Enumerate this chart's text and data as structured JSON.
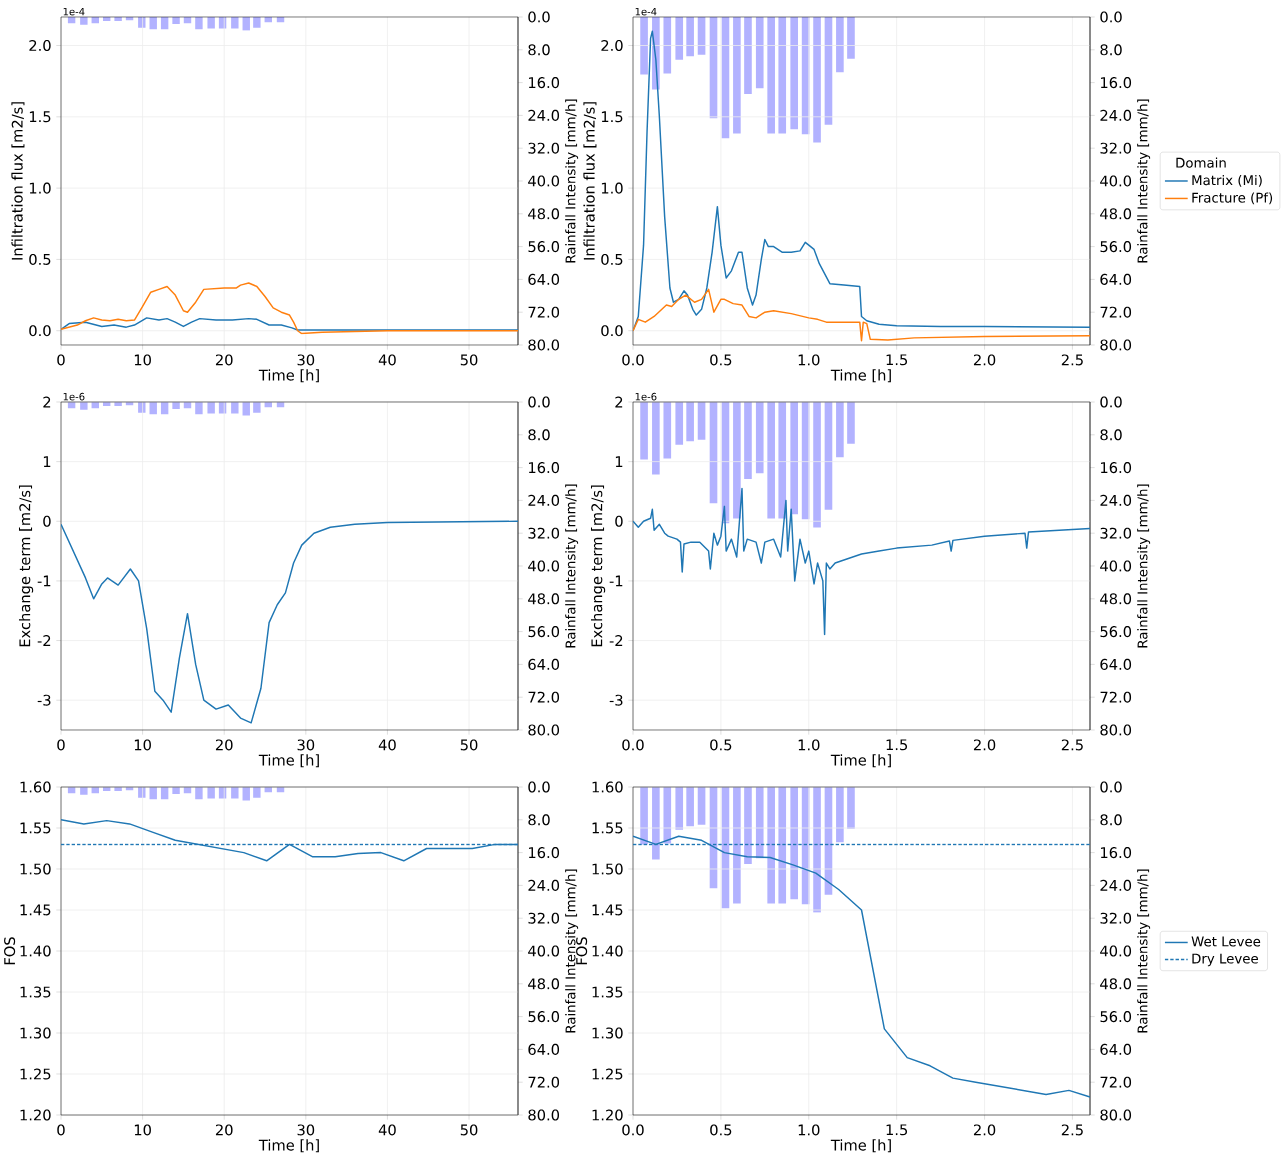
{
  "chart_data": [
    {
      "type": "line",
      "xlabel": "Time [h]",
      "ylabel": "Infiltration flux [m2/s]",
      "y2label": "Rainfall Intensity [mm/h]",
      "annotations": [
        "1e-4"
      ],
      "grid": true,
      "xlim": [
        0,
        56
      ],
      "xticks": [
        0,
        10,
        20,
        30,
        40,
        50
      ],
      "ylim": [
        -0.1,
        2.2
      ],
      "yticks": [
        {
          "value": 0,
          "label": "0.0"
        },
        {
          "value": 0.5,
          "label": "0.5"
        },
        {
          "value": 1,
          "label": "1.0"
        },
        {
          "value": 1.5,
          "label": "1.5"
        },
        {
          "value": 2,
          "label": "2.0"
        }
      ],
      "y2lim": [
        80,
        0
      ],
      "y2ticks": [
        {
          "value": 0,
          "label": "0.0"
        },
        {
          "value": 8,
          "label": "8.0"
        },
        {
          "value": 16,
          "label": "16.0"
        },
        {
          "value": 24,
          "label": "24.0"
        },
        {
          "value": 32,
          "label": "32.0"
        },
        {
          "value": 40,
          "label": "40.0"
        },
        {
          "value": 48,
          "label": "48.0"
        },
        {
          "value": 56,
          "label": "56.0"
        },
        {
          "value": 64,
          "label": "64.0"
        },
        {
          "value": 72,
          "label": "72.0"
        },
        {
          "value": 80,
          "label": "80.0"
        }
      ],
      "series": [
        {
          "type": "bar",
          "axis": "y2",
          "color": "#b2b2ff",
          "x": [
            1.3,
            2.8,
            4.2,
            5.6,
            7.0,
            8.4,
            9.9,
            11.3,
            12.7,
            14.1,
            15.5,
            16.9,
            18.4,
            19.8,
            21.3,
            22.7,
            24.0,
            25.4,
            26.9
          ],
          "values": [
            1.5,
            1.9,
            1.5,
            1.0,
            1.0,
            0.8,
            2.6,
            3.0,
            3.0,
            1.7,
            1.5,
            3.0,
            2.8,
            2.8,
            2.8,
            3.3,
            2.6,
            1.3,
            1.3
          ]
        },
        {
          "color": "#1f77b4",
          "x": [
            0,
            1,
            3,
            5,
            6.5,
            8,
            9,
            10.5,
            12,
            13,
            14,
            15,
            16,
            17,
            19,
            21,
            23,
            24,
            25.5,
            27,
            28.3,
            29,
            40,
            56
          ],
          "values": [
            0.01,
            0.05,
            0.06,
            0.03,
            0.04,
            0.025,
            0.04,
            0.09,
            0.075,
            0.085,
            0.06,
            0.03,
            0.06,
            0.085,
            0.075,
            0.075,
            0.085,
            0.08,
            0.04,
            0.04,
            0.02,
            0.005,
            0.005,
            0.005
          ]
        },
        {
          "color": "#ff7f0e",
          "x": [
            0,
            2,
            3,
            4,
            5,
            6,
            7,
            8,
            9,
            10,
            11,
            12,
            13,
            14,
            15,
            15.5,
            16.5,
            17.5,
            20,
            21.5,
            22,
            23,
            24,
            25,
            26,
            27,
            28,
            28.5,
            29,
            29.5,
            32,
            40,
            56
          ],
          "values": [
            0.01,
            0.04,
            0.07,
            0.09,
            0.075,
            0.07,
            0.08,
            0.07,
            0.075,
            0.17,
            0.27,
            0.29,
            0.31,
            0.25,
            0.14,
            0.13,
            0.2,
            0.29,
            0.3,
            0.3,
            0.32,
            0.335,
            0.31,
            0.24,
            0.16,
            0.13,
            0.11,
            0.06,
            0.0,
            -0.02,
            -0.01,
            0.0,
            0.0
          ]
        }
      ]
    },
    {
      "type": "line",
      "xlabel": "Time [h]",
      "ylabel": "Infiltration flux [m2/s]",
      "y2label": "Rainfall Intensity [mm/h]",
      "annotations": [
        "1e-4"
      ],
      "grid": true,
      "legend": "right",
      "legend_title": "Domain",
      "xlim": [
        0,
        2.6
      ],
      "xticks": [
        {
          "value": 0,
          "label": "0.0"
        },
        {
          "value": 0.5,
          "label": "0.5"
        },
        {
          "value": 1,
          "label": "1.0"
        },
        {
          "value": 1.5,
          "label": "1.5"
        },
        {
          "value": 2,
          "label": "2.0"
        },
        {
          "value": 2.5,
          "label": "2.5"
        }
      ],
      "ylim": [
        -0.1,
        2.2
      ],
      "yticks": [
        {
          "value": 0,
          "label": "0.0"
        },
        {
          "value": 0.5,
          "label": "0.5"
        },
        {
          "value": 1,
          "label": "1.0"
        },
        {
          "value": 1.5,
          "label": "1.5"
        },
        {
          "value": 2,
          "label": "2.0"
        }
      ],
      "y2lim": [
        80,
        0
      ],
      "y2ticks": [
        {
          "value": 0,
          "label": "0.0"
        },
        {
          "value": 8,
          "label": "8.0"
        },
        {
          "value": 16,
          "label": "16.0"
        },
        {
          "value": 24,
          "label": "24.0"
        },
        {
          "value": 32,
          "label": "32.0"
        },
        {
          "value": 40,
          "label": "40.0"
        },
        {
          "value": 48,
          "label": "48.0"
        },
        {
          "value": 56,
          "label": "56.0"
        },
        {
          "value": 64,
          "label": "64.0"
        },
        {
          "value": 72,
          "label": "72.0"
        },
        {
          "value": 80,
          "label": "80.0"
        }
      ],
      "series": [
        {
          "type": "bar",
          "axis": "y2",
          "color": "#b2b2ff",
          "x": [
            0.063,
            0.13,
            0.195,
            0.263,
            0.325,
            0.39,
            0.458,
            0.526,
            0.591,
            0.654,
            0.721,
            0.786,
            0.849,
            0.917,
            0.982,
            1.047,
            1.112,
            1.177,
            1.24
          ],
          "values": [
            14.0,
            17.7,
            13.8,
            10.4,
            9.6,
            9.2,
            24.7,
            29.6,
            28.4,
            18.8,
            17.4,
            28.4,
            28.4,
            27.4,
            28.6,
            30.6,
            26.3,
            13.5,
            10.2
          ]
        },
        {
          "name": "Matrix (Mi)",
          "color": "#1f77b4",
          "x": [
            0,
            0.03,
            0.06,
            0.08,
            0.1,
            0.11,
            0.13,
            0.15,
            0.18,
            0.21,
            0.23,
            0.26,
            0.29,
            0.31,
            0.34,
            0.36,
            0.39,
            0.42,
            0.45,
            0.48,
            0.5,
            0.53,
            0.56,
            0.6,
            0.62,
            0.65,
            0.68,
            0.7,
            0.73,
            0.75,
            0.77,
            0.8,
            0.85,
            0.9,
            0.95,
            0.98,
            1.0,
            1.03,
            1.06,
            1.09,
            1.12,
            1.2,
            1.29,
            1.3,
            1.33,
            1.4,
            1.5,
            1.75,
            2.0,
            2.6
          ],
          "values": [
            0,
            0.1,
            0.6,
            1.4,
            2.05,
            2.1,
            1.9,
            1.5,
            0.8,
            0.3,
            0.2,
            0.22,
            0.28,
            0.25,
            0.15,
            0.11,
            0.15,
            0.3,
            0.55,
            0.87,
            0.6,
            0.37,
            0.42,
            0.55,
            0.55,
            0.3,
            0.18,
            0.25,
            0.5,
            0.64,
            0.59,
            0.59,
            0.55,
            0.55,
            0.56,
            0.62,
            0.6,
            0.57,
            0.47,
            0.4,
            0.33,
            0.32,
            0.31,
            0.1,
            0.07,
            0.045,
            0.035,
            0.03,
            0.03,
            0.025
          ]
        },
        {
          "name": "Fracture (Pf)",
          "color": "#ff7f0e",
          "x": [
            0,
            0.03,
            0.07,
            0.12,
            0.19,
            0.22,
            0.26,
            0.3,
            0.35,
            0.39,
            0.43,
            0.46,
            0.5,
            0.52,
            0.57,
            0.62,
            0.66,
            0.7,
            0.75,
            0.8,
            0.9,
            1.0,
            1.05,
            1.1,
            1.2,
            1.29,
            1.3,
            1.31,
            1.33,
            1.35,
            1.45,
            1.6,
            2.0,
            2.6
          ],
          "values": [
            0.0,
            0.08,
            0.06,
            0.1,
            0.18,
            0.17,
            0.22,
            0.25,
            0.2,
            0.22,
            0.29,
            0.13,
            0.22,
            0.22,
            0.19,
            0.18,
            0.1,
            0.09,
            0.13,
            0.14,
            0.12,
            0.09,
            0.08,
            0.06,
            0.06,
            0.06,
            -0.07,
            0.06,
            0.05,
            -0.06,
            -0.065,
            -0.05,
            -0.04,
            -0.035
          ]
        }
      ]
    },
    {
      "type": "line",
      "xlabel": "Time [h]",
      "ylabel": "Exchange term [m2/s]",
      "y2label": "Rainfall Intensity [mm/h]",
      "annotations": [
        "1e-6"
      ],
      "grid": true,
      "xlim": [
        0,
        56
      ],
      "xticks": [
        0,
        10,
        20,
        30,
        40,
        50
      ],
      "ylim": [
        -3.5,
        2
      ],
      "yticks": [
        -3,
        -2,
        -1,
        0,
        1,
        2
      ],
      "y2lim": [
        80,
        0
      ],
      "y2ticks": [
        {
          "value": 0,
          "label": "0.0"
        },
        {
          "value": 8,
          "label": "8.0"
        },
        {
          "value": 16,
          "label": "16.0"
        },
        {
          "value": 24,
          "label": "24.0"
        },
        {
          "value": 32,
          "label": "32.0"
        },
        {
          "value": 40,
          "label": "40.0"
        },
        {
          "value": 48,
          "label": "48.0"
        },
        {
          "value": 56,
          "label": "56.0"
        },
        {
          "value": 64,
          "label": "64.0"
        },
        {
          "value": 72,
          "label": "72.0"
        },
        {
          "value": 80,
          "label": "80.0"
        }
      ],
      "series": [
        {
          "type": "bar",
          "axis": "y2",
          "color": "#b2b2ff",
          "x": [
            1.3,
            2.8,
            4.2,
            5.6,
            7.0,
            8.4,
            9.9,
            11.3,
            12.7,
            14.1,
            15.5,
            16.9,
            18.4,
            19.8,
            21.3,
            22.7,
            24.0,
            25.4,
            26.9
          ],
          "values": [
            1.5,
            1.9,
            1.5,
            1.0,
            1.0,
            0.8,
            2.6,
            3.0,
            3.0,
            1.7,
            1.5,
            3.0,
            2.8,
            2.8,
            2.8,
            3.3,
            2.6,
            1.3,
            1.3
          ]
        },
        {
          "color": "#1f77b4",
          "x": [
            0,
            1,
            2,
            3,
            4,
            5,
            5.7,
            7,
            8.5,
            9.5,
            10.5,
            11.5,
            12.5,
            13.5,
            14.5,
            15.5,
            16.5,
            17.5,
            19,
            20.5,
            22,
            23.3,
            24.5,
            25.5,
            26.5,
            27.5,
            28.5,
            29.5,
            31,
            33,
            36,
            40,
            56
          ],
          "values": [
            -0.05,
            -0.35,
            -0.65,
            -0.95,
            -1.3,
            -1.05,
            -0.95,
            -1.07,
            -0.8,
            -1.0,
            -1.8,
            -2.85,
            -3.0,
            -3.2,
            -2.3,
            -1.55,
            -2.4,
            -3.0,
            -3.15,
            -3.08,
            -3.3,
            -3.38,
            -2.8,
            -1.7,
            -1.4,
            -1.2,
            -0.7,
            -0.4,
            -0.2,
            -0.1,
            -0.05,
            -0.02,
            0.0
          ]
        }
      ]
    },
    {
      "type": "line",
      "xlabel": "Time [h]",
      "ylabel": "Exchange term [m2/s]",
      "y2label": "Rainfall Intensity [mm/h]",
      "annotations": [
        "1e-6"
      ],
      "grid": true,
      "xlim": [
        0,
        2.6
      ],
      "xticks": [
        {
          "value": 0,
          "label": "0.0"
        },
        {
          "value": 0.5,
          "label": "0.5"
        },
        {
          "value": 1,
          "label": "1.0"
        },
        {
          "value": 1.5,
          "label": "1.5"
        },
        {
          "value": 2,
          "label": "2.0"
        },
        {
          "value": 2.5,
          "label": "2.5"
        }
      ],
      "ylim": [
        -3.5,
        2
      ],
      "yticks": [
        -3,
        -2,
        -1,
        0,
        1,
        2
      ],
      "y2lim": [
        80,
        0
      ],
      "y2ticks": [
        {
          "value": 0,
          "label": "0.0"
        },
        {
          "value": 8,
          "label": "8.0"
        },
        {
          "value": 16,
          "label": "16.0"
        },
        {
          "value": 24,
          "label": "24.0"
        },
        {
          "value": 32,
          "label": "32.0"
        },
        {
          "value": 40,
          "label": "40.0"
        },
        {
          "value": 48,
          "label": "48.0"
        },
        {
          "value": 56,
          "label": "56.0"
        },
        {
          "value": 64,
          "label": "64.0"
        },
        {
          "value": 72,
          "label": "72.0"
        },
        {
          "value": 80,
          "label": "80.0"
        }
      ],
      "series": [
        {
          "type": "bar",
          "axis": "y2",
          "color": "#b2b2ff",
          "x": [
            0.063,
            0.13,
            0.195,
            0.263,
            0.325,
            0.39,
            0.458,
            0.526,
            0.591,
            0.654,
            0.721,
            0.786,
            0.849,
            0.917,
            0.982,
            1.047,
            1.112,
            1.177,
            1.24
          ],
          "values": [
            14.0,
            17.7,
            13.8,
            10.4,
            9.6,
            9.2,
            24.7,
            29.6,
            28.4,
            18.8,
            17.4,
            28.4,
            28.4,
            27.4,
            28.6,
            30.6,
            26.3,
            13.5,
            10.2
          ]
        },
        {
          "color": "#1f77b4",
          "x": [
            0,
            0.03,
            0.06,
            0.1,
            0.11,
            0.12,
            0.15,
            0.18,
            0.2,
            0.25,
            0.27,
            0.28,
            0.29,
            0.33,
            0.38,
            0.43,
            0.44,
            0.46,
            0.48,
            0.5,
            0.52,
            0.53,
            0.56,
            0.59,
            0.62,
            0.63,
            0.65,
            0.7,
            0.73,
            0.75,
            0.8,
            0.84,
            0.87,
            0.88,
            0.9,
            0.92,
            0.95,
            0.98,
            1.0,
            1.03,
            1.05,
            1.08,
            1.09,
            1.1,
            1.12,
            1.15,
            1.2,
            1.25,
            1.3,
            1.4,
            1.5,
            1.7,
            1.8,
            1.81,
            1.82,
            2.0,
            2.23,
            2.24,
            2.25,
            2.6
          ],
          "values": [
            0.0,
            -0.1,
            0.0,
            0.05,
            0.2,
            -0.15,
            -0.05,
            -0.2,
            -0.25,
            -0.3,
            -0.35,
            -0.85,
            -0.38,
            -0.35,
            -0.35,
            -0.5,
            -0.8,
            -0.2,
            -0.4,
            -0.25,
            0.25,
            -0.5,
            -0.3,
            -0.6,
            0.55,
            -0.5,
            -0.3,
            -0.35,
            -0.7,
            -0.35,
            -0.3,
            -0.6,
            0.35,
            -0.5,
            0.2,
            -1.0,
            -0.3,
            -0.7,
            -0.5,
            -1.05,
            -0.7,
            -1.0,
            -1.9,
            -0.7,
            -0.8,
            -0.7,
            -0.65,
            -0.6,
            -0.55,
            -0.5,
            -0.45,
            -0.4,
            -0.33,
            -0.5,
            -0.32,
            -0.25,
            -0.2,
            -0.45,
            -0.18,
            -0.12
          ]
        }
      ]
    },
    {
      "type": "line",
      "xlabel": "Time [h]",
      "ylabel": "FOS",
      "y2label": "Rainfall Intensity [mm/h]",
      "grid": true,
      "xlim": [
        0,
        56
      ],
      "xticks": [
        0,
        10,
        20,
        30,
        40,
        50
      ],
      "ylim": [
        1.2,
        1.6
      ],
      "yticks": [
        {
          "value": 1.2,
          "label": "1.20"
        },
        {
          "value": 1.25,
          "label": "1.25"
        },
        {
          "value": 1.3,
          "label": "1.30"
        },
        {
          "value": 1.35,
          "label": "1.35"
        },
        {
          "value": 1.4,
          "label": "1.40"
        },
        {
          "value": 1.45,
          "label": "1.45"
        },
        {
          "value": 1.5,
          "label": "1.50"
        },
        {
          "value": 1.55,
          "label": "1.55"
        },
        {
          "value": 1.6,
          "label": "1.60"
        }
      ],
      "y2lim": [
        80,
        0
      ],
      "y2ticks": [
        {
          "value": 0,
          "label": "0.0"
        },
        {
          "value": 8,
          "label": "8.0"
        },
        {
          "value": 16,
          "label": "16.0"
        },
        {
          "value": 24,
          "label": "24.0"
        },
        {
          "value": 32,
          "label": "32.0"
        },
        {
          "value": 40,
          "label": "40.0"
        },
        {
          "value": 48,
          "label": "48.0"
        },
        {
          "value": 56,
          "label": "56.0"
        },
        {
          "value": 64,
          "label": "64.0"
        },
        {
          "value": 72,
          "label": "72.0"
        },
        {
          "value": 80,
          "label": "80.0"
        }
      ],
      "series": [
        {
          "type": "bar",
          "axis": "y2",
          "color": "#b2b2ff",
          "x": [
            1.3,
            2.8,
            4.2,
            5.6,
            7.0,
            8.4,
            9.9,
            11.3,
            12.7,
            14.1,
            15.5,
            16.9,
            18.4,
            19.8,
            21.3,
            22.7,
            24.0,
            25.4,
            26.9
          ],
          "values": [
            1.5,
            1.9,
            1.5,
            1.0,
            1.0,
            0.8,
            2.6,
            3.0,
            3.0,
            1.7,
            1.5,
            3.0,
            2.8,
            2.8,
            2.8,
            3.3,
            2.6,
            1.3,
            1.3
          ]
        },
        {
          "color": "#1f77b4",
          "x": [
            0,
            2.8,
            5.6,
            8.4,
            11.2,
            14,
            16.8,
            19.6,
            22.4,
            25.2,
            28,
            30.8,
            33.6,
            36.4,
            39.2,
            42,
            44.8,
            50.4,
            53.2,
            56
          ],
          "values": [
            1.56,
            1.555,
            1.559,
            1.555,
            1.545,
            1.535,
            1.53,
            1.525,
            1.52,
            1.51,
            1.53,
            1.515,
            1.515,
            1.519,
            1.52,
            1.51,
            1.525,
            1.525,
            1.53,
            1.53
          ]
        },
        {
          "color": "#1f77b4",
          "line_style": "dashed",
          "x": [
            0,
            56
          ],
          "values": [
            1.53,
            1.53
          ]
        }
      ]
    },
    {
      "type": "line",
      "xlabel": "Time [h]",
      "ylabel": "FOS",
      "y2label": "Rainfall Intensity [mm/h]",
      "grid": true,
      "legend": "right",
      "xlim": [
        0,
        2.6
      ],
      "xticks": [
        {
          "value": 0,
          "label": "0.0"
        },
        {
          "value": 0.5,
          "label": "0.5"
        },
        {
          "value": 1,
          "label": "1.0"
        },
        {
          "value": 1.5,
          "label": "1.5"
        },
        {
          "value": 2,
          "label": "2.0"
        },
        {
          "value": 2.5,
          "label": "2.5"
        }
      ],
      "ylim": [
        1.2,
        1.6
      ],
      "yticks": [
        {
          "value": 1.2,
          "label": "1.20"
        },
        {
          "value": 1.25,
          "label": "1.25"
        },
        {
          "value": 1.3,
          "label": "1.30"
        },
        {
          "value": 1.35,
          "label": "1.35"
        },
        {
          "value": 1.4,
          "label": "1.40"
        },
        {
          "value": 1.45,
          "label": "1.45"
        },
        {
          "value": 1.5,
          "label": "1.50"
        },
        {
          "value": 1.55,
          "label": "1.55"
        },
        {
          "value": 1.6,
          "label": "1.60"
        }
      ],
      "y2lim": [
        80,
        0
      ],
      "y2ticks": [
        {
          "value": 0,
          "label": "0.0"
        },
        {
          "value": 8,
          "label": "8.0"
        },
        {
          "value": 16,
          "label": "16.0"
        },
        {
          "value": 24,
          "label": "24.0"
        },
        {
          "value": 32,
          "label": "32.0"
        },
        {
          "value": 40,
          "label": "40.0"
        },
        {
          "value": 48,
          "label": "48.0"
        },
        {
          "value": 56,
          "label": "56.0"
        },
        {
          "value": 64,
          "label": "64.0"
        },
        {
          "value": 72,
          "label": "72.0"
        },
        {
          "value": 80,
          "label": "80.0"
        }
      ],
      "series": [
        {
          "type": "bar",
          "axis": "y2",
          "color": "#b2b2ff",
          "x": [
            0.063,
            0.13,
            0.195,
            0.263,
            0.325,
            0.39,
            0.458,
            0.526,
            0.591,
            0.654,
            0.721,
            0.786,
            0.849,
            0.917,
            0.982,
            1.047,
            1.112,
            1.177,
            1.24
          ],
          "values": [
            14.0,
            17.7,
            13.8,
            10.4,
            9.6,
            9.2,
            24.7,
            29.6,
            28.4,
            18.8,
            17.4,
            28.4,
            28.4,
            27.4,
            28.6,
            30.6,
            26.3,
            13.5,
            10.2
          ]
        },
        {
          "name": "Wet Levee",
          "color": "#1f77b4",
          "x": [
            0,
            0.13,
            0.26,
            0.39,
            0.52,
            0.65,
            0.78,
            0.91,
            1.04,
            1.17,
            1.3,
            1.43,
            1.56,
            1.69,
            1.82,
            1.95,
            2.35,
            2.48,
            2.6
          ],
          "values": [
            1.54,
            1.53,
            1.54,
            1.535,
            1.52,
            1.515,
            1.514,
            1.505,
            1.495,
            1.475,
            1.45,
            1.305,
            1.27,
            1.26,
            1.245,
            1.24,
            1.225,
            1.23,
            1.222
          ]
        },
        {
          "name": "Dry Levee",
          "color": "#1f77b4",
          "line_style": "dashed",
          "x": [
            0,
            2.6
          ],
          "values": [
            1.53,
            1.53
          ]
        }
      ]
    }
  ]
}
